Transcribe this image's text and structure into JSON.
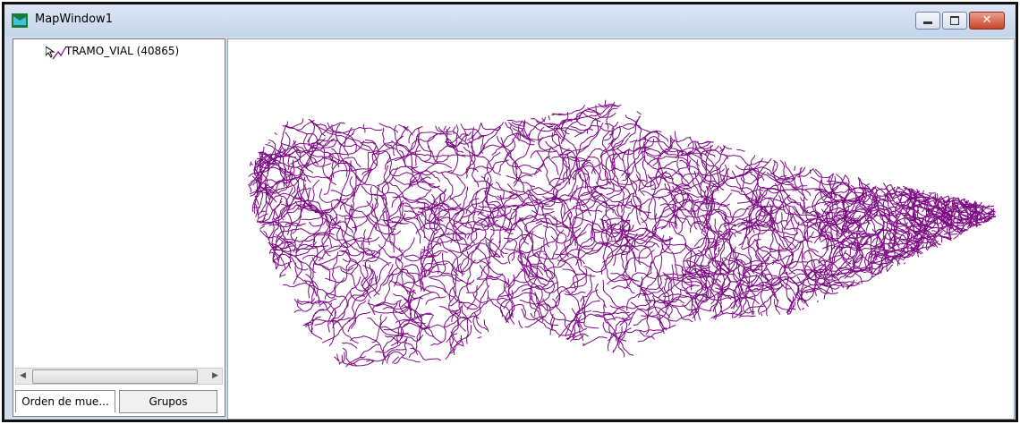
{
  "window": {
    "title": "MapWindow1"
  },
  "legend": {
    "layers": [
      {
        "name": "TRAMO_VIAL (40865)"
      }
    ]
  },
  "tabs": [
    "Orden de mue...",
    "Grupos"
  ]
}
